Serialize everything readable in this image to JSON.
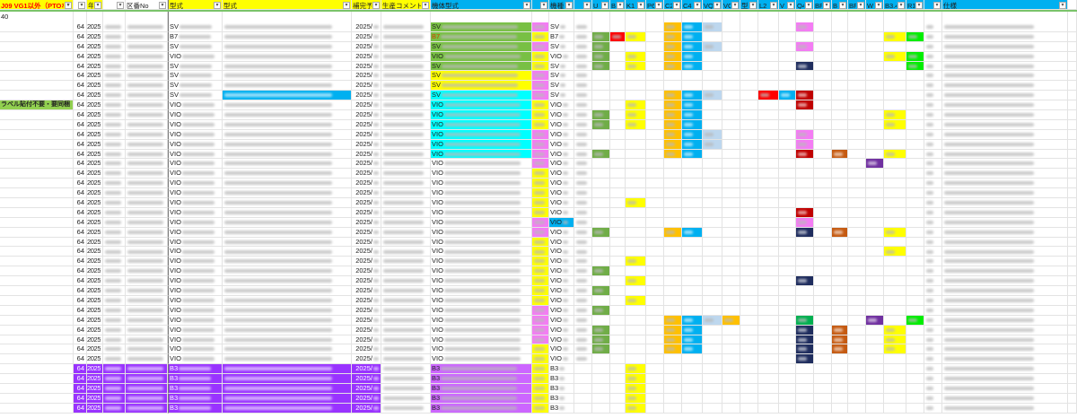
{
  "sheet": {
    "count_label": "40",
    "headers": [
      "J09 VG1以外（PTOなし",
      "",
      "年月",
      "",
      "区番No",
      "型式",
      "型式",
      "補完予定日",
      "生産コメント",
      "機体型式",
      "",
      "機種",
      "",
      "U",
      "B",
      "K1",
      "P6",
      "C2",
      "C4",
      "VQ",
      "VC",
      "型",
      "L2",
      "V",
      "Q4",
      "BF",
      "B",
      "BF",
      "W",
      "B3.4",
      "R1",
      "",
      "仕様",
      ""
    ],
    "header_colors": {
      "yellow": "#ffff00",
      "blue": "#00b0f0",
      "white": "#ffffff",
      "title_text": "#ff0000"
    },
    "filter_glyph": "▾",
    "palette": {
      "g": "#70ad47",
      "r": "#ff0000",
      "y": "#ffff00",
      "o": "#ffc000",
      "b": "#00b0f0",
      "lb": "#bdd7ee",
      "pk": "#f47cf4",
      "dr": "#c00000",
      "nv": "#1f2d5e",
      "br": "#c55a11",
      "pu": "#7030a0",
      "gr": "#00ee00",
      "tg": "#00b050",
      "cy": "#00ffff",
      "vi": "#cc66ff",
      "pp": "#9933ff",
      "jg": "#78c044",
      "p": "#f47cf4"
    },
    "rows": [
      {
        "n": "64",
        "y": "2025",
        "m": "SV",
        "h": "2025/",
        "j": "jg",
        "k": "p",
        "r": {
          "C2": "o",
          "C4": "b",
          "VQ": "lb",
          "Q4": "pk"
        }
      },
      {
        "n": "64",
        "y": "2025",
        "m": "B7",
        "h": "2025/",
        "j": "jg",
        "jt": "#d04000",
        "k": "y",
        "r": {
          "U": "g",
          "B": "r",
          "K1": "y",
          "C2": "o",
          "C4": "b",
          "B34": "y",
          "R1": "gr"
        }
      },
      {
        "n": "64",
        "y": "2025",
        "m": "SV",
        "h": "2025/",
        "j": "jg",
        "k": "p",
        "r": {
          "U": "g",
          "C2": "o",
          "C4": "b",
          "VQ": "lb",
          "Q4": "pk"
        }
      },
      {
        "n": "64",
        "y": "2025",
        "m": "VIO",
        "h": "2025/",
        "j": "jg",
        "k": "y",
        "r": {
          "U": "g",
          "K1": "y",
          "C2": "o",
          "C4": "b",
          "B34": "y",
          "R1": "gr"
        }
      },
      {
        "n": "64",
        "y": "2025",
        "m": "SV",
        "h": "2025/",
        "j": "jg",
        "k": "y",
        "r": {
          "U": "g",
          "K1": "y",
          "C2": "o",
          "C4": "b",
          "Q4": "nv",
          "R1": "gr"
        }
      },
      {
        "n": "64",
        "y": "2025",
        "m": "SV",
        "h": "2025/",
        "j": "y",
        "k": "p",
        "r": {}
      },
      {
        "n": "64",
        "y": "2025",
        "m": "SV",
        "h": "2025/",
        "j": "y",
        "k": "p",
        "r": {}
      },
      {
        "n": "64",
        "y": "2025",
        "m": "SV",
        "h": "2025/",
        "g": "b",
        "j": "cy",
        "k": "p",
        "r": {
          "C2": "o",
          "C4": "b",
          "VQ": "lb",
          "L2": "r",
          "V": "b",
          "Q4": "dr"
        }
      },
      {
        "label": "ラベル貼付不要・要同梱",
        "n": "64",
        "y": "2025",
        "m": "VIO",
        "h": "2025/",
        "j": "cy",
        "k": "y",
        "r": {
          "K1": "y",
          "C2": "o",
          "C4": "b",
          "Q4": "dr"
        }
      },
      {
        "n": "64",
        "y": "2025",
        "m": "VIO",
        "h": "2025/",
        "j": "cy",
        "k": "y",
        "r": {
          "U": "g",
          "K1": "y",
          "C2": "o",
          "C4": "b",
          "B34": "y"
        }
      },
      {
        "n": "64",
        "y": "2025",
        "m": "VIO",
        "h": "2025/",
        "j": "cy",
        "k": "y",
        "r": {
          "U": "g",
          "K1": "y",
          "C2": "o",
          "C4": "b",
          "B34": "y"
        }
      },
      {
        "n": "64",
        "y": "2025",
        "m": "VIO",
        "h": "2025/",
        "j": "cy",
        "k": "p",
        "r": {
          "C2": "o",
          "C4": "b",
          "VQ": "lb",
          "Q4": "pk"
        }
      },
      {
        "n": "64",
        "y": "2025",
        "m": "VIO",
        "h": "2025/",
        "j": "cy",
        "k": "p",
        "r": {
          "C2": "o",
          "C4": "b",
          "VQ": "lb",
          "Q4": "pk"
        }
      },
      {
        "n": "64",
        "y": "2025",
        "m": "VIO",
        "h": "2025/",
        "j": "cy",
        "k": "p",
        "r": {
          "U": "g",
          "C2": "o",
          "C4": "b",
          "Q4": "dr",
          "B2": "br",
          "B34": "y"
        }
      },
      {
        "n": "64",
        "y": "2025",
        "m": "VIO",
        "h": "2025/",
        "k": "p",
        "r": {
          "W": "pu"
        }
      },
      {
        "n": "64",
        "y": "2025",
        "m": "VIO",
        "h": "2025/",
        "k": "y",
        "r": {}
      },
      {
        "n": "64",
        "y": "2025",
        "m": "VIO",
        "h": "2025/",
        "k": "y",
        "r": {}
      },
      {
        "n": "64",
        "y": "2025",
        "m": "VIO",
        "h": "2025/",
        "k": "y",
        "r": {}
      },
      {
        "n": "64",
        "y": "2025",
        "m": "VIO",
        "h": "2025/",
        "k": "y",
        "r": {
          "K1": "y"
        }
      },
      {
        "n": "64",
        "y": "2025",
        "m": "VIO",
        "h": "2025/",
        "k": "y",
        "r": {
          "Q4": "dr"
        }
      },
      {
        "n": "64",
        "y": "2025",
        "m": "VIO",
        "h": "2025/",
        "k": "p",
        "l": "b",
        "r": {
          "Q4": "pk"
        }
      },
      {
        "n": "64",
        "y": "2025",
        "m": "VIO",
        "h": "2025/",
        "k": "p",
        "r": {
          "U": "g",
          "C2": "o",
          "C4": "b",
          "Q4": "nv",
          "B2": "br",
          "B34": "y"
        }
      },
      {
        "n": "64",
        "y": "2025",
        "m": "VIO",
        "h": "2025/",
        "k": "y",
        "r": {}
      },
      {
        "n": "64",
        "y": "2025",
        "m": "VIO",
        "h": "2025/",
        "k": "y",
        "r": {
          "B34": "y"
        }
      },
      {
        "n": "64",
        "y": "2025",
        "m": "VIO",
        "h": "2025/",
        "k": "y",
        "r": {
          "K1": "y"
        }
      },
      {
        "n": "64",
        "y": "2025",
        "m": "VIO",
        "h": "2025/",
        "k": "y",
        "r": {
          "U": "g"
        }
      },
      {
        "n": "64",
        "y": "2025",
        "m": "VIO",
        "h": "2025/",
        "k": "y",
        "r": {
          "K1": "y",
          "Q4": "nv"
        }
      },
      {
        "n": "64",
        "y": "2025",
        "m": "VIO",
        "h": "2025/",
        "k": "y",
        "r": {
          "U": "g"
        }
      },
      {
        "n": "64",
        "y": "2025",
        "m": "VIO",
        "h": "2025/",
        "k": "y",
        "r": {
          "K1": "y"
        }
      },
      {
        "n": "64",
        "y": "2025",
        "m": "VIO",
        "h": "2025/",
        "k": "p",
        "r": {
          "U": "g"
        }
      },
      {
        "n": "64",
        "y": "2025",
        "m": "VIO",
        "h": "2025/",
        "k": "p",
        "r": {
          "C2": "o",
          "C4": "b",
          "VQ": "lb",
          "VC": "o",
          "Q4": "tg",
          "W": "pu",
          "R1": "gr"
        }
      },
      {
        "n": "64",
        "y": "2025",
        "m": "VIO",
        "h": "2025/",
        "k": "p",
        "r": {
          "U": "g",
          "C2": "o",
          "C4": "b",
          "Q4": "nv",
          "B2": "br",
          "B34": "y"
        }
      },
      {
        "n": "64",
        "y": "2025",
        "m": "VIO",
        "h": "2025/",
        "k": "p",
        "r": {
          "U": "g",
          "C2": "o",
          "C4": "b",
          "Q4": "nv",
          "B2": "br",
          "B34": "y"
        }
      },
      {
        "n": "64",
        "y": "2025",
        "m": "VIO",
        "h": "2025/",
        "k": "y",
        "r": {
          "U": "g",
          "C2": "o",
          "C4": "b",
          "Q4": "nv",
          "B2": "br",
          "B34": "y"
        }
      },
      {
        "n": "64",
        "y": "2025",
        "m": "VIO",
        "h": "2025/",
        "k": "y",
        "r": {
          "Q4": "nv"
        }
      },
      {
        "n": "64",
        "y": "2025",
        "m": "B3",
        "h": "2025/",
        "purple": true,
        "j": "vi",
        "k": "y",
        "r": {
          "K1": "y"
        }
      },
      {
        "n": "64",
        "y": "2025",
        "m": "B3",
        "h": "2025/",
        "purple": true,
        "j": "vi",
        "k": "y",
        "r": {
          "K1": "y"
        }
      },
      {
        "n": "64",
        "y": "2025",
        "m": "B3",
        "h": "2025/",
        "purple": true,
        "j": "vi",
        "k": "y",
        "r": {
          "K1": "y"
        }
      },
      {
        "n": "64",
        "y": "2025",
        "m": "B3",
        "h": "2025/",
        "purple": true,
        "j": "vi",
        "k": "y",
        "r": {
          "K1": "y"
        }
      },
      {
        "n": "64",
        "y": "2025",
        "m": "B3",
        "h": "2025/",
        "purple": true,
        "j": "vi",
        "k": "y",
        "r": {
          "K1": "y"
        }
      }
    ]
  }
}
